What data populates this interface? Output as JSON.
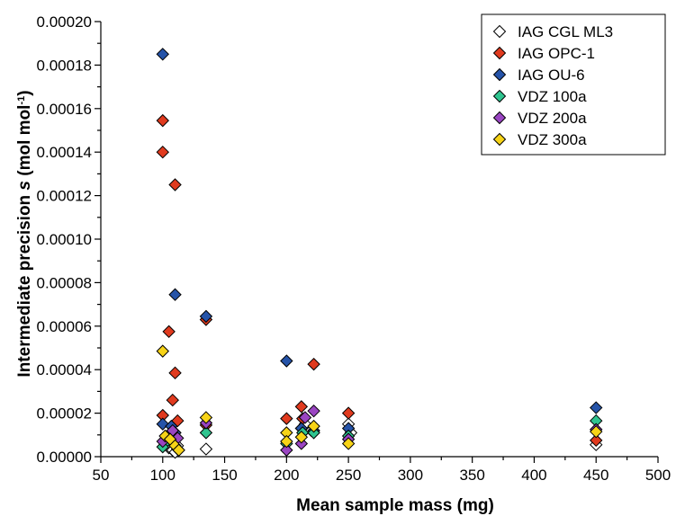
{
  "chart_data": {
    "type": "scatter",
    "title": "",
    "xlabel": "Mean sample mass  (mg)",
    "ylabel_parts": {
      "pre": "Intermediate precision ",
      "italic": "s",
      "mid": "  (mol mol",
      "sup": "-1",
      "post": ")"
    },
    "xlim": [
      50,
      500
    ],
    "ylim": [
      0,
      0.0002
    ],
    "x_ticks": [
      50,
      100,
      150,
      200,
      250,
      300,
      350,
      400,
      450,
      500
    ],
    "y_ticks": [
      0,
      2e-05,
      4e-05,
      6e-05,
      8e-05,
      0.0001,
      0.00012,
      0.00014,
      0.00016,
      0.00018,
      0.0002
    ],
    "x_tick_labels": [
      "50",
      "100",
      "150",
      "200",
      "250",
      "300",
      "350",
      "400",
      "450",
      "500"
    ],
    "y_tick_labels": [
      "0.00000",
      "0.00002",
      "0.00004",
      "0.00006",
      "0.00008",
      "0.00010",
      "0.00012",
      "0.00014",
      "0.00016",
      "0.00018",
      "0.00020"
    ],
    "legend_position": "top-right",
    "series": [
      {
        "name": "IAG CGL ML3",
        "color": "#ffffff",
        "points": [
          [
            105,
            4e-06
          ],
          [
            108,
            3e-06
          ],
          [
            110,
            2e-06
          ],
          [
            112,
            5e-06
          ],
          [
            135,
            3.5e-06
          ],
          [
            212,
            1.3e-05
          ],
          [
            215,
            1.5e-05
          ],
          [
            220,
            1.2e-05
          ],
          [
            250,
            1.5e-05
          ],
          [
            252,
            1.1e-05
          ],
          [
            450,
            5.5e-06
          ]
        ]
      },
      {
        "name": "IAG OPC-1",
        "color": "#e03a1e",
        "points": [
          [
            100,
            0.0001545
          ],
          [
            100,
            0.00014
          ],
          [
            110,
            0.000125
          ],
          [
            105,
            5.75e-05
          ],
          [
            110,
            3.85e-05
          ],
          [
            108,
            2.6e-05
          ],
          [
            100,
            1.9e-05
          ],
          [
            112,
            1.65e-05
          ],
          [
            135,
            6.3e-05
          ],
          [
            135,
            1.45e-05
          ],
          [
            200,
            1.75e-05
          ],
          [
            212,
            2.3e-05
          ],
          [
            213,
            1.75e-05
          ],
          [
            222,
            4.25e-05
          ],
          [
            250,
            2e-05
          ],
          [
            450,
            7.5e-06
          ]
        ]
      },
      {
        "name": "IAG OU-6",
        "color": "#2553a8",
        "points": [
          [
            100,
            0.000185
          ],
          [
            110,
            7.45e-05
          ],
          [
            135,
            6.45e-05
          ],
          [
            200,
            4.4e-05
          ],
          [
            100,
            1.5e-05
          ],
          [
            107,
            1.4e-05
          ],
          [
            110,
            1.1e-05
          ],
          [
            212,
            1.3e-05
          ],
          [
            222,
            1.2e-05
          ],
          [
            250,
            1.3e-05
          ],
          [
            450,
            2.25e-05
          ]
        ]
      },
      {
        "name": "VDZ 100a",
        "color": "#2fc48f",
        "points": [
          [
            100,
            4.5e-06
          ],
          [
            104,
            7.5e-06
          ],
          [
            112,
            3.5e-06
          ],
          [
            135,
            1.1e-05
          ],
          [
            200,
            6e-06
          ],
          [
            213,
            1.1e-05
          ],
          [
            222,
            1.1e-05
          ],
          [
            250,
            9.5e-06
          ],
          [
            450,
            1.65e-05
          ]
        ]
      },
      {
        "name": "VDZ 200a",
        "color": "#9a45c2",
        "points": [
          [
            100,
            7e-06
          ],
          [
            108,
            1.2e-05
          ],
          [
            112,
            8.5e-06
          ],
          [
            135,
            1.55e-05
          ],
          [
            200,
            3e-06
          ],
          [
            212,
            6e-06
          ],
          [
            215,
            1.8e-05
          ],
          [
            222,
            2.1e-05
          ],
          [
            250,
            8e-06
          ],
          [
            450,
            1.25e-05
          ]
        ]
      },
      {
        "name": "VDZ 300a",
        "color": "#f7d317",
        "points": [
          [
            100,
            4.85e-05
          ],
          [
            102,
            9.5e-06
          ],
          [
            106,
            8e-06
          ],
          [
            110,
            5e-06
          ],
          [
            113,
            3e-06
          ],
          [
            135,
            1.8e-05
          ],
          [
            200,
            1.1e-05
          ],
          [
            200,
            7e-06
          ],
          [
            212,
            9e-06
          ],
          [
            222,
            1.4e-05
          ],
          [
            250,
            6e-06
          ],
          [
            450,
            1.15e-05
          ]
        ]
      }
    ]
  }
}
